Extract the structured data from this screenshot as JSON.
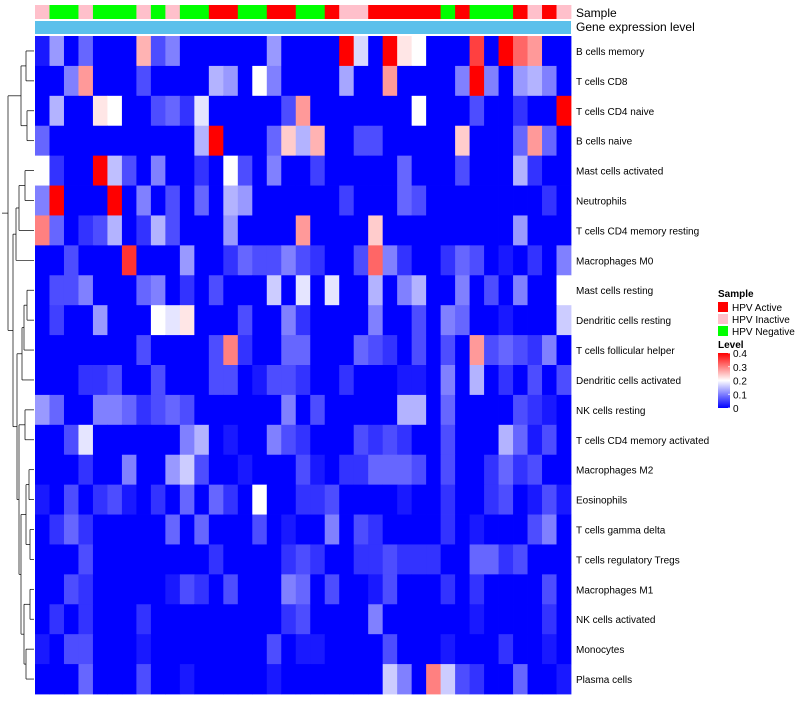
{
  "chart_data": {
    "type": "heatmap",
    "title": "",
    "annotation_tracks": [
      "Sample",
      "Gene expression level"
    ],
    "rows": [
      "B cells memory",
      "T cells CD8",
      "T cells CD4 naive",
      "B cells naive",
      "Mast cells activated",
      "Neutrophils",
      "T cells CD4 memory resting",
      "Macrophages M0",
      "Mast cells resting",
      "Dendritic cells resting",
      "T cells follicular helper",
      "Dendritic cells activated",
      "NK cells resting",
      "T cells CD4 memory activated",
      "Macrophages M2",
      "Eosinophils",
      "T cells gamma delta",
      "T cells regulatory  Tregs",
      "Macrophages M1",
      "NK cells activated",
      "Monocytes",
      "Plasma cells"
    ],
    "sample_groups": [
      "HPV Inactive",
      "HPV Negative",
      "HPV Negative",
      "HPV Inactive",
      "HPV Negative",
      "HPV Negative",
      "HPV Negative",
      "HPV Inactive",
      "HPV Negative",
      "HPV Inactive",
      "HPV Negative",
      "HPV Negative",
      "HPV Active",
      "HPV Active",
      "HPV Negative",
      "HPV Negative",
      "HPV Active",
      "HPV Active",
      "HPV Negative",
      "HPV Negative",
      "HPV Active",
      "HPV Inactive",
      "HPV Inactive",
      "HPV Active",
      "HPV Active",
      "HPV Active",
      "HPV Active",
      "HPV Active",
      "HPV Negative",
      "HPV Active",
      "HPV Negative",
      "HPV Negative",
      "HPV Negative",
      "HPV Active",
      "HPV Inactive",
      "HPV Active",
      "HPV Inactive"
    ],
    "values": [
      [
        0.02,
        0.12,
        0.0,
        0.08,
        0.0,
        0.0,
        0.0,
        0.26,
        0.06,
        0.1,
        0.0,
        0.0,
        0.0,
        0.0,
        0.0,
        0.0,
        0.12,
        0.0,
        0.0,
        0.0,
        0.0,
        0.4,
        0.17,
        0.0,
        0.4,
        0.22,
        0.2,
        0.0,
        0.0,
        0.0,
        0.35,
        0.0,
        0.4,
        0.32,
        0.28,
        0.0,
        0.0
      ],
      [
        0.0,
        0.0,
        0.1,
        0.28,
        0.0,
        0.0,
        0.0,
        0.06,
        0.0,
        0.0,
        0.0,
        0.0,
        0.14,
        0.12,
        0.0,
        0.2,
        0.1,
        0.0,
        0.0,
        0.0,
        0.0,
        0.13,
        0.0,
        0.0,
        0.28,
        0.0,
        0.0,
        0.0,
        0.0,
        0.1,
        0.4,
        0.1,
        0.0,
        0.12,
        0.14,
        0.1,
        0.0
      ],
      [
        0.0,
        0.14,
        0.0,
        0.0,
        0.22,
        0.2,
        0.0,
        0.0,
        0.06,
        0.08,
        0.04,
        0.18,
        0.0,
        0.0,
        0.0,
        0.0,
        0.0,
        0.06,
        0.28,
        0.0,
        0.0,
        0.0,
        0.0,
        0.0,
        0.0,
        0.0,
        0.2,
        0.0,
        0.0,
        0.0,
        0.06,
        0.0,
        0.0,
        0.04,
        0.0,
        0.0,
        0.4
      ],
      [
        0.08,
        0.0,
        0.0,
        0.0,
        0.0,
        0.0,
        0.0,
        0.0,
        0.0,
        0.0,
        0.0,
        0.14,
        0.4,
        0.0,
        0.0,
        0.0,
        0.08,
        0.24,
        0.14,
        0.26,
        0.0,
        0.0,
        0.06,
        0.06,
        0.0,
        0.0,
        0.0,
        0.0,
        0.0,
        0.24,
        0.0,
        0.0,
        0.0,
        0.08,
        0.28,
        0.08,
        0.0
      ],
      [
        0.2,
        0.04,
        0.0,
        0.0,
        0.4,
        0.15,
        0.06,
        0.0,
        0.1,
        0.0,
        0.0,
        0.04,
        0.0,
        0.2,
        0.06,
        0.0,
        0.1,
        0.0,
        0.0,
        0.05,
        0.0,
        0.0,
        0.0,
        0.0,
        0.0,
        0.08,
        0.0,
        0.0,
        0.0,
        0.06,
        0.0,
        0.0,
        0.0,
        0.14,
        0.04,
        0.0,
        0.0
      ],
      [
        0.1,
        0.4,
        0.0,
        0.0,
        0.0,
        0.4,
        0.0,
        0.1,
        0.0,
        0.06,
        0.0,
        0.08,
        0.0,
        0.14,
        0.12,
        0.0,
        0.0,
        0.0,
        0.0,
        0.0,
        0.0,
        0.05,
        0.0,
        0.0,
        0.0,
        0.08,
        0.06,
        0.0,
        0.0,
        0.0,
        0.0,
        0.0,
        0.0,
        0.0,
        0.0,
        0.04,
        0.0
      ],
      [
        0.3,
        0.08,
        0.0,
        0.04,
        0.06,
        0.14,
        0.0,
        0.04,
        0.14,
        0.06,
        0.0,
        0.0,
        0.0,
        0.12,
        0.0,
        0.0,
        0.0,
        0.0,
        0.28,
        0.0,
        0.0,
        0.0,
        0.0,
        0.24,
        0.0,
        0.0,
        0.0,
        0.0,
        0.0,
        0.0,
        0.0,
        0.0,
        0.0,
        0.12,
        0.0,
        0.0,
        0.0
      ],
      [
        0.0,
        0.0,
        0.06,
        0.0,
        0.0,
        0.0,
        0.36,
        0.0,
        0.0,
        0.0,
        0.12,
        0.0,
        0.0,
        0.04,
        0.08,
        0.06,
        0.06,
        0.1,
        0.06,
        0.04,
        0.0,
        0.0,
        0.06,
        0.32,
        0.1,
        0.04,
        0.0,
        0.0,
        0.04,
        0.08,
        0.06,
        0.0,
        0.02,
        0.0,
        0.04,
        0.0,
        0.1
      ],
      [
        0.0,
        0.06,
        0.06,
        0.1,
        0.0,
        0.0,
        0.0,
        0.08,
        0.1,
        0.0,
        0.04,
        0.0,
        0.06,
        0.0,
        0.0,
        0.0,
        0.16,
        0.0,
        0.18,
        0.0,
        0.18,
        0.0,
        0.0,
        0.14,
        0.0,
        0.1,
        0.14,
        0.0,
        0.0,
        0.1,
        0.0,
        0.06,
        0.0,
        0.1,
        0.0,
        0.0,
        0.2
      ],
      [
        0.0,
        0.05,
        0.0,
        0.0,
        0.12,
        0.0,
        0.0,
        0.0,
        0.2,
        0.18,
        0.22,
        0.0,
        0.0,
        0.0,
        0.06,
        0.0,
        0.0,
        0.1,
        0.04,
        0.0,
        0.0,
        0.0,
        0.0,
        0.1,
        0.0,
        0.0,
        0.06,
        0.0,
        0.1,
        0.08,
        0.0,
        0.0,
        0.02,
        0.0,
        0.0,
        0.0,
        0.16
      ],
      [
        0.0,
        0.0,
        0.0,
        0.0,
        0.0,
        0.0,
        0.0,
        0.06,
        0.0,
        0.0,
        0.0,
        0.0,
        0.06,
        0.3,
        0.04,
        0.0,
        0.0,
        0.08,
        0.08,
        0.0,
        0.0,
        0.0,
        0.08,
        0.06,
        0.04,
        0.0,
        0.06,
        0.0,
        0.06,
        0.0,
        0.28,
        0.06,
        0.08,
        0.06,
        0.04,
        0.1,
        0.0
      ],
      [
        0.0,
        0.0,
        0.0,
        0.04,
        0.04,
        0.06,
        0.0,
        0.0,
        0.06,
        0.0,
        0.0,
        0.0,
        0.06,
        0.06,
        0.0,
        0.02,
        0.06,
        0.06,
        0.04,
        0.0,
        0.0,
        0.04,
        0.0,
        0.0,
        0.0,
        0.02,
        0.02,
        0.0,
        0.1,
        0.0,
        0.14,
        0.0,
        0.04,
        0.0,
        0.06,
        0.0,
        0.06
      ],
      [
        0.12,
        0.08,
        0.0,
        0.0,
        0.1,
        0.1,
        0.08,
        0.04,
        0.06,
        0.08,
        0.06,
        0.0,
        0.0,
        0.0,
        0.0,
        0.0,
        0.0,
        0.1,
        0.0,
        0.06,
        0.0,
        0.0,
        0.0,
        0.0,
        0.0,
        0.14,
        0.14,
        0.0,
        0.08,
        0.0,
        0.0,
        0.0,
        0.0,
        0.06,
        0.04,
        0.02,
        0.0
      ],
      [
        0.0,
        0.0,
        0.06,
        0.18,
        0.0,
        0.0,
        0.0,
        0.0,
        0.0,
        0.0,
        0.1,
        0.14,
        0.0,
        0.02,
        0.0,
        0.0,
        0.1,
        0.06,
        0.04,
        0.0,
        0.0,
        0.0,
        0.06,
        0.04,
        0.06,
        0.04,
        0.0,
        0.0,
        0.06,
        0.0,
        0.0,
        0.0,
        0.14,
        0.08,
        0.02,
        0.06,
        0.0
      ],
      [
        0.0,
        0.0,
        0.0,
        0.04,
        0.0,
        0.0,
        0.1,
        0.0,
        0.0,
        0.12,
        0.16,
        0.06,
        0.0,
        0.0,
        0.02,
        0.0,
        0.0,
        0.0,
        0.06,
        0.02,
        0.0,
        0.04,
        0.04,
        0.08,
        0.08,
        0.08,
        0.06,
        0.0,
        0.06,
        0.0,
        0.0,
        0.04,
        0.08,
        0.04,
        0.06,
        0.0,
        0.0
      ],
      [
        0.02,
        0.0,
        0.06,
        0.0,
        0.04,
        0.06,
        0.02,
        0.0,
        0.04,
        0.0,
        0.08,
        0.0,
        0.08,
        0.04,
        0.0,
        0.2,
        0.0,
        0.0,
        0.04,
        0.04,
        0.06,
        0.0,
        0.0,
        0.0,
        0.0,
        0.02,
        0.0,
        0.0,
        0.04,
        0.0,
        0.0,
        0.04,
        0.06,
        0.0,
        0.02,
        0.06,
        0.02
      ],
      [
        0.0,
        0.04,
        0.08,
        0.04,
        0.0,
        0.0,
        0.0,
        0.0,
        0.0,
        0.08,
        0.0,
        0.08,
        0.0,
        0.0,
        0.0,
        0.06,
        0.0,
        0.02,
        0.0,
        0.0,
        0.1,
        0.0,
        0.06,
        0.04,
        0.0,
        0.0,
        0.0,
        0.0,
        0.04,
        0.0,
        0.02,
        0.0,
        0.0,
        0.0,
        0.06,
        0.1,
        0.0
      ],
      [
        0.0,
        0.0,
        0.0,
        0.06,
        0.0,
        0.0,
        0.0,
        0.0,
        0.0,
        0.0,
        0.0,
        0.0,
        0.04,
        0.0,
        0.0,
        0.0,
        0.0,
        0.04,
        0.06,
        0.04,
        0.0,
        0.0,
        0.04,
        0.04,
        0.06,
        0.04,
        0.04,
        0.04,
        0.0,
        0.0,
        0.08,
        0.08,
        0.04,
        0.06,
        0.0,
        0.0,
        0.0
      ],
      [
        0.0,
        0.0,
        0.06,
        0.04,
        0.0,
        0.0,
        0.0,
        0.0,
        0.0,
        0.02,
        0.06,
        0.04,
        0.0,
        0.06,
        0.0,
        0.0,
        0.0,
        0.1,
        0.08,
        0.0,
        0.06,
        0.0,
        0.0,
        0.02,
        0.06,
        0.0,
        0.0,
        0.0,
        0.04,
        0.0,
        0.04,
        0.0,
        0.0,
        0.0,
        0.0,
        0.06,
        0.0
      ],
      [
        0.0,
        0.04,
        0.0,
        0.04,
        0.0,
        0.0,
        0.0,
        0.04,
        0.0,
        0.0,
        0.0,
        0.0,
        0.0,
        0.0,
        0.0,
        0.0,
        0.0,
        0.04,
        0.06,
        0.0,
        0.0,
        0.0,
        0.0,
        0.1,
        0.0,
        0.0,
        0.0,
        0.0,
        0.0,
        0.0,
        0.02,
        0.0,
        0.0,
        0.0,
        0.0,
        0.04,
        0.0
      ],
      [
        0.02,
        0.0,
        0.06,
        0.06,
        0.0,
        0.0,
        0.0,
        0.02,
        0.0,
        0.0,
        0.0,
        0.0,
        0.0,
        0.0,
        0.0,
        0.0,
        0.06,
        0.0,
        0.02,
        0.02,
        0.0,
        0.0,
        0.0,
        0.0,
        0.06,
        0.0,
        0.0,
        0.0,
        0.02,
        0.0,
        0.0,
        0.0,
        0.04,
        0.0,
        0.0,
        0.02,
        0.0
      ],
      [
        0.0,
        0.0,
        0.0,
        0.08,
        0.0,
        0.0,
        0.0,
        0.06,
        0.0,
        0.0,
        0.02,
        0.0,
        0.0,
        0.0,
        0.0,
        0.0,
        0.02,
        0.0,
        0.0,
        0.0,
        0.0,
        0.0,
        0.0,
        0.0,
        0.16,
        0.1,
        0.0,
        0.3,
        0.16,
        0.06,
        0.04,
        0.0,
        0.0,
        0.08,
        0.0,
        0.0,
        0.02
      ]
    ],
    "legend": {
      "position": "right",
      "sample_title": "Sample",
      "groups": [
        {
          "label": "HPV Active",
          "color": "#ff0000"
        },
        {
          "label": "HPV Inactive",
          "color": "#ffc0cb"
        },
        {
          "label": "HPV Negative",
          "color": "#00ff00"
        }
      ],
      "level_title": "Level",
      "level_ticks": [
        "0.4",
        "0.3",
        "0.2",
        "0.1",
        "0"
      ],
      "level_range": [
        0,
        0.4
      ],
      "level_colors": [
        "#0000ff",
        "#ffffff",
        "#ff0000"
      ]
    },
    "expression_track_color": "#5bc0eb",
    "grid": false
  }
}
